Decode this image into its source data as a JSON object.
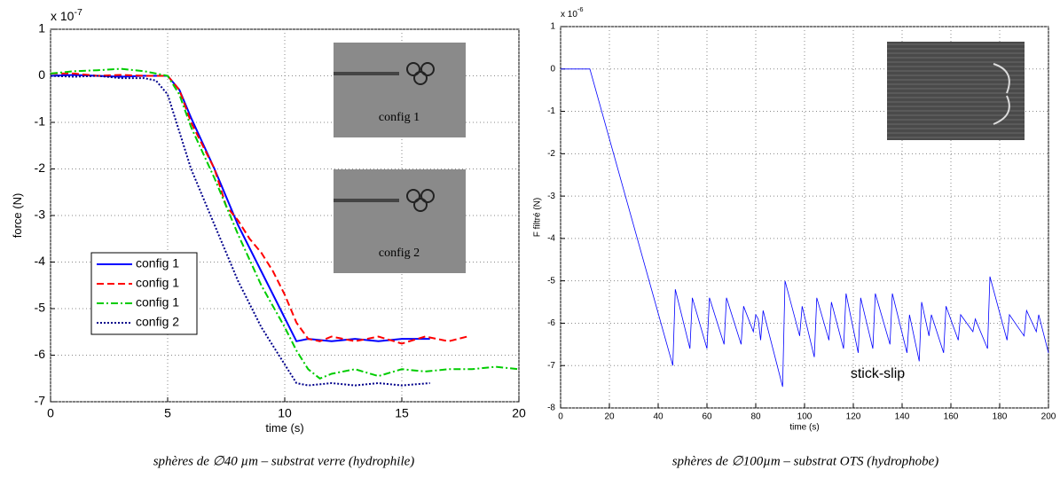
{
  "chart_data": [
    {
      "type": "line",
      "xlabel": "time (s)",
      "ylabel": "force (N)",
      "axis_multiplier": {
        "base": "x 10",
        "exponent": "-7"
      },
      "xlim": [
        0,
        20
      ],
      "ylim": [
        -7,
        1
      ],
      "xticks": [
        0,
        5,
        10,
        15,
        20
      ],
      "yticks": [
        -7,
        -6,
        -5,
        -4,
        -3,
        -2,
        -1,
        0,
        1
      ],
      "grid": true,
      "legend": "center left",
      "insets": [
        "config 1",
        "config 2"
      ],
      "series": [
        {
          "name": "config 1",
          "color": "#0000ff",
          "dash": "solid",
          "x": [
            0,
            1,
            2,
            3,
            4,
            5,
            5.5,
            6,
            7,
            8,
            9,
            10,
            10.5,
            11,
            12,
            13,
            14,
            15,
            16.2
          ],
          "values": [
            0,
            0.02,
            0,
            -0.02,
            0,
            0,
            -0.3,
            -0.9,
            -2.0,
            -3.2,
            -4.2,
            -5.2,
            -5.7,
            -5.65,
            -5.7,
            -5.65,
            -5.7,
            -5.65,
            -5.65
          ]
        },
        {
          "name": "config 1",
          "color": "#ff0000",
          "dash": "dashed",
          "x": [
            0,
            1,
            2,
            3,
            4,
            5,
            5.5,
            6,
            7,
            7.5,
            8,
            8.5,
            9,
            9.5,
            10,
            10.5,
            11,
            11.5,
            12,
            13,
            14,
            15,
            16,
            17,
            17.8
          ],
          "values": [
            0.05,
            0.05,
            0,
            0.02,
            0,
            0,
            -0.3,
            -1.0,
            -2.0,
            -2.8,
            -3.1,
            -3.5,
            -3.8,
            -4.2,
            -4.7,
            -5.3,
            -5.65,
            -5.7,
            -5.6,
            -5.7,
            -5.6,
            -5.75,
            -5.6,
            -5.7,
            -5.6
          ]
        },
        {
          "name": "config 1",
          "color": "#00cc00",
          "dash": "dashdot",
          "x": [
            0,
            1,
            2,
            3,
            4,
            5,
            5.5,
            6,
            7,
            8,
            9,
            10,
            10.5,
            11,
            11.5,
            12,
            13,
            14,
            15,
            16,
            17,
            18,
            19,
            20
          ],
          "values": [
            0.05,
            0.1,
            0.12,
            0.15,
            0.1,
            0,
            -0.4,
            -1.1,
            -2.2,
            -3.4,
            -4.5,
            -5.4,
            -5.9,
            -6.3,
            -6.5,
            -6.4,
            -6.3,
            -6.45,
            -6.3,
            -6.35,
            -6.3,
            -6.3,
            -6.25,
            -6.3
          ]
        },
        {
          "name": "config 2",
          "color": "#00008b",
          "dash": "dotted",
          "x": [
            0,
            1,
            2,
            3,
            4,
            4.5,
            5,
            5.5,
            6,
            7,
            8,
            9,
            10,
            10.5,
            11,
            12,
            13,
            14,
            15,
            16.2
          ],
          "values": [
            0,
            -0.02,
            0,
            -0.05,
            -0.05,
            -0.1,
            -0.4,
            -1.2,
            -2.0,
            -3.2,
            -4.4,
            -5.4,
            -6.2,
            -6.6,
            -6.65,
            -6.6,
            -6.65,
            -6.6,
            -6.65,
            -6.6
          ]
        }
      ],
      "caption": "sphères de ∅40 µm – substrat verre (hydrophile)"
    },
    {
      "type": "line",
      "xlabel": "time (s)",
      "ylabel": "F filtré (N)",
      "axis_multiplier": {
        "base": "x 10",
        "exponent": "-6"
      },
      "xlim": [
        0,
        200
      ],
      "ylim": [
        -8,
        1
      ],
      "xticks": [
        0,
        20,
        40,
        60,
        80,
        100,
        120,
        140,
        160,
        180,
        200
      ],
      "yticks": [
        -8,
        -7,
        -6,
        -5,
        -4,
        -3,
        -2,
        -1,
        0,
        1
      ],
      "grid": true,
      "annotation": "stick-slip",
      "series": [
        {
          "color": "#0000ff",
          "dash": "solid",
          "x": [
            0,
            12,
            46,
            47,
            53,
            54,
            60,
            61,
            67,
            68,
            74,
            75,
            79,
            80,
            81,
            82,
            83,
            91,
            92,
            98,
            99,
            104,
            105,
            110,
            111,
            116,
            117,
            122,
            123,
            128,
            129,
            135,
            136,
            142,
            143,
            147,
            148,
            151,
            152,
            157,
            158,
            163,
            164,
            169,
            170,
            175,
            176,
            183,
            184,
            190,
            191,
            195,
            196,
            200
          ],
          "values": [
            0,
            0,
            -7,
            -5.2,
            -6.6,
            -5.4,
            -6.6,
            -5.4,
            -6.5,
            -5.4,
            -6.5,
            -5.6,
            -6.2,
            -5.8,
            -5.9,
            -6.4,
            -5.7,
            -7.5,
            -5.0,
            -6.3,
            -5.6,
            -6.8,
            -5.4,
            -6.4,
            -5.5,
            -6.6,
            -5.3,
            -6.7,
            -5.4,
            -6.6,
            -5.3,
            -6.5,
            -5.3,
            -6.7,
            -5.8,
            -6.9,
            -5.5,
            -6.3,
            -5.8,
            -6.7,
            -5.6,
            -6.4,
            -5.8,
            -6.2,
            -5.9,
            -6.6,
            -4.9,
            -6.4,
            -5.8,
            -6.3,
            -5.7,
            -6.2,
            -5.8,
            -6.7
          ]
        }
      ],
      "caption": "sphères de ∅100µm – substrat OTS (hydrophobe)"
    }
  ]
}
